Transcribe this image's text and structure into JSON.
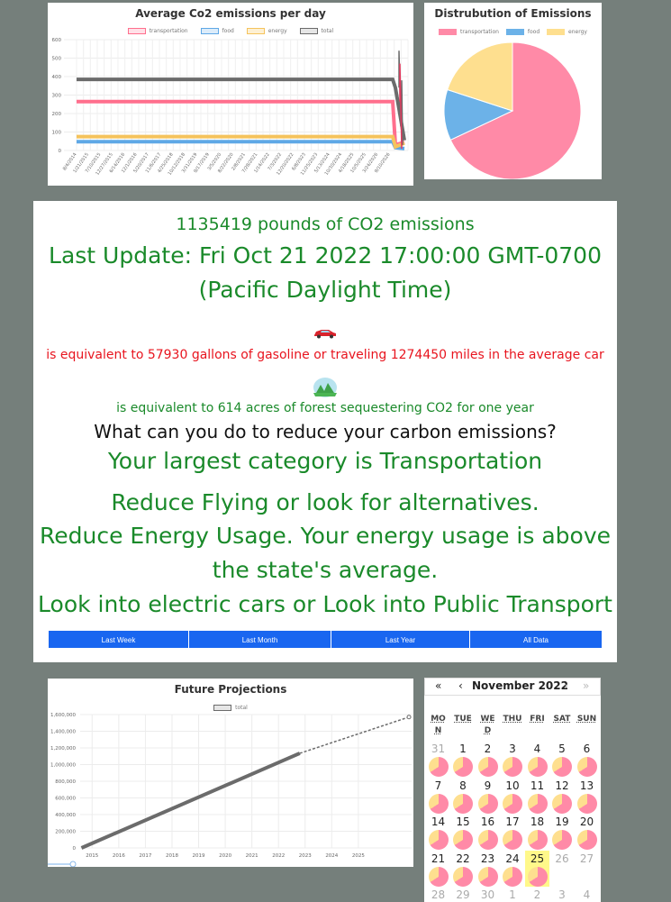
{
  "colors": {
    "transportation": "#ff6f8d",
    "food": "#5fa8e6",
    "energy": "#f5c35c",
    "total": "#6b6b6b",
    "accent_button": "#1966f0",
    "green_text": "#1a8a2a",
    "red_text": "#e8141e"
  },
  "avg_chart": {
    "title": "Average Co2 emissions per day",
    "legend": [
      {
        "name": "transportation",
        "color": "#ff6f8d"
      },
      {
        "name": "food",
        "color": "#5fa8e6"
      },
      {
        "name": "energy",
        "color": "#f5c35c"
      },
      {
        "name": "total",
        "color": "#6b6b6b"
      }
    ]
  },
  "pie_chart": {
    "title": "Distrubution of Emissions",
    "legend": [
      {
        "name": "transportation",
        "color": "#ff8aa7"
      },
      {
        "name": "food",
        "color": "#6cb2e8"
      },
      {
        "name": "energy",
        "color": "#fedf8f"
      }
    ]
  },
  "info": {
    "total_emissions": "1135419 pounds of CO2 emissions",
    "last_update_1": "Last Update: Fri Oct 21 2022 17:00:00 GMT-0700",
    "last_update_2": "(Pacific Daylight Time)",
    "car_icon": "car-icon",
    "car_equivalence": "is equivalent to 57930 gallons of gasoline or traveling 1274450 miles in the average car",
    "forest_icon": "forest-icon",
    "forest_equivalence": "is equivalent to 614 acres of forest sequestering CO2 for one year",
    "question": "What can you do to reduce your carbon emissions?",
    "largest_category": "Your largest category is Transportation",
    "tip_flying": "Reduce Flying or look for alternatives.",
    "tip_energy_1": "Reduce Energy Usage. Your energy usage is above",
    "tip_energy_2": "the state's average.",
    "tip_transport": "Look into electric cars or Look into Public Transport",
    "range_buttons": [
      "Last Week",
      "Last Month",
      "Last Year",
      "All Data"
    ]
  },
  "projection_chart": {
    "title": "Future Projections",
    "legend": [
      {
        "name": "total",
        "color": "#6b6b6b"
      }
    ]
  },
  "calendar": {
    "nav": {
      "first": "«",
      "prev": "‹",
      "next": "›",
      "last": "»"
    },
    "title": "November 2022",
    "dow": [
      [
        "MO",
        "N"
      ],
      [
        "TUE",
        ""
      ],
      [
        "WE",
        "D"
      ],
      [
        "THU",
        ""
      ],
      [
        "FRI",
        ""
      ],
      [
        "SAT",
        ""
      ],
      [
        "SUN",
        ""
      ]
    ],
    "weeks": [
      [
        [
          "31",
          "other",
          true
        ],
        [
          "1",
          "",
          true
        ],
        [
          "2",
          "",
          true
        ],
        [
          "3",
          "",
          true
        ],
        [
          "4",
          "",
          true
        ],
        [
          "5",
          "",
          true
        ],
        [
          "6",
          "",
          true
        ]
      ],
      [
        [
          "7",
          "",
          true
        ],
        [
          "8",
          "",
          true
        ],
        [
          "9",
          "",
          true
        ],
        [
          "10",
          "",
          true
        ],
        [
          "11",
          "",
          true
        ],
        [
          "12",
          "",
          true
        ],
        [
          "13",
          "",
          true
        ]
      ],
      [
        [
          "14",
          "",
          true
        ],
        [
          "15",
          "",
          true
        ],
        [
          "16",
          "",
          true
        ],
        [
          "17",
          "",
          true
        ],
        [
          "18",
          "",
          true
        ],
        [
          "19",
          "",
          true
        ],
        [
          "20",
          "",
          true
        ]
      ],
      [
        [
          "21",
          "",
          true
        ],
        [
          "22",
          "",
          true
        ],
        [
          "23",
          "",
          true
        ],
        [
          "24",
          "",
          true
        ],
        [
          "25",
          "today",
          true
        ],
        [
          "26",
          "other",
          false
        ],
        [
          "27",
          "other",
          false
        ]
      ],
      [
        [
          "28",
          "other",
          false
        ],
        [
          "29",
          "other",
          false
        ],
        [
          "30",
          "other",
          false
        ],
        [
          "1",
          "other",
          false
        ],
        [
          "2",
          "other",
          false
        ],
        [
          "3",
          "other",
          false
        ],
        [
          "4",
          "other",
          false
        ]
      ]
    ]
  },
  "chart_data": [
    {
      "type": "line",
      "title": "Average Co2 emissions per day",
      "ylim": [
        0,
        600
      ],
      "y_ticks": [
        "0",
        "100",
        "200",
        "300",
        "400",
        "500",
        "600"
      ],
      "x_tick_labels": [
        "8/4/2014",
        "1/21/2015",
        "7/10/2015",
        "12/27/2015",
        "6/14/2016",
        "12/1/2016",
        "5/20/2017",
        "11/6/2017",
        "4/25/2018",
        "10/12/2018",
        "3/31/2019",
        "9/17/2019",
        "3/5/2020",
        "8/22/2020",
        "2/8/2021",
        "7/28/2021",
        "1/14/2022",
        "7/3/2022",
        "12/20/2022",
        "6/8/2023",
        "11/25/2023",
        "5/13/2024",
        "10/30/2024",
        "4/18/2025",
        "10/5/2025",
        "3/24/2026",
        "9/10/2026"
      ],
      "series": [
        {
          "name": "transportation",
          "values": [
            265,
            265,
            265,
            265,
            265,
            265,
            265,
            265,
            265,
            265,
            265,
            265,
            265,
            265,
            265,
            265,
            265,
            265,
            265,
            265,
            265,
            265,
            265,
            265,
            265,
            30,
            45
          ]
        },
        {
          "name": "food",
          "values": [
            48,
            48,
            48,
            48,
            48,
            48,
            48,
            48,
            48,
            48,
            48,
            48,
            48,
            48,
            48,
            48,
            48,
            48,
            48,
            48,
            48,
            48,
            48,
            48,
            48,
            15,
            10
          ]
        },
        {
          "name": "energy",
          "values": [
            75,
            75,
            75,
            75,
            75,
            75,
            75,
            75,
            75,
            75,
            75,
            75,
            75,
            75,
            75,
            75,
            75,
            75,
            75,
            75,
            75,
            75,
            75,
            75,
            75,
            20,
            40
          ]
        },
        {
          "name": "total",
          "values": [
            385,
            385,
            385,
            385,
            385,
            385,
            385,
            385,
            385,
            385,
            385,
            385,
            385,
            385,
            385,
            385,
            385,
            385,
            385,
            385,
            385,
            385,
            385,
            385,
            385,
            340,
            55
          ]
        }
      ]
    },
    {
      "type": "pie",
      "title": "Distrubution of Emissions",
      "categories": [
        "transportation",
        "food",
        "energy"
      ],
      "values": [
        68,
        12,
        20
      ]
    },
    {
      "type": "line",
      "title": "Future Projections",
      "ylim": [
        0,
        1600000
      ],
      "y_ticks": [
        "0",
        "200,000",
        "400,000",
        "600,000",
        "800,000",
        "1,000,000",
        "1,200,000",
        "1,400,000",
        "1,600,000"
      ],
      "x_ticks": [
        "2015",
        "2016",
        "2017",
        "2018",
        "2019",
        "2020",
        "2021",
        "2022",
        "2023",
        "2024",
        "2025"
      ],
      "series": [
        {
          "name": "total",
          "x": [
            2014.6,
            2022.8
          ],
          "values": [
            0,
            1135419
          ]
        },
        {
          "name": "total-projection",
          "x": [
            2022.8,
            2026.9
          ],
          "values": [
            1135419,
            1570000
          ]
        }
      ]
    }
  ]
}
